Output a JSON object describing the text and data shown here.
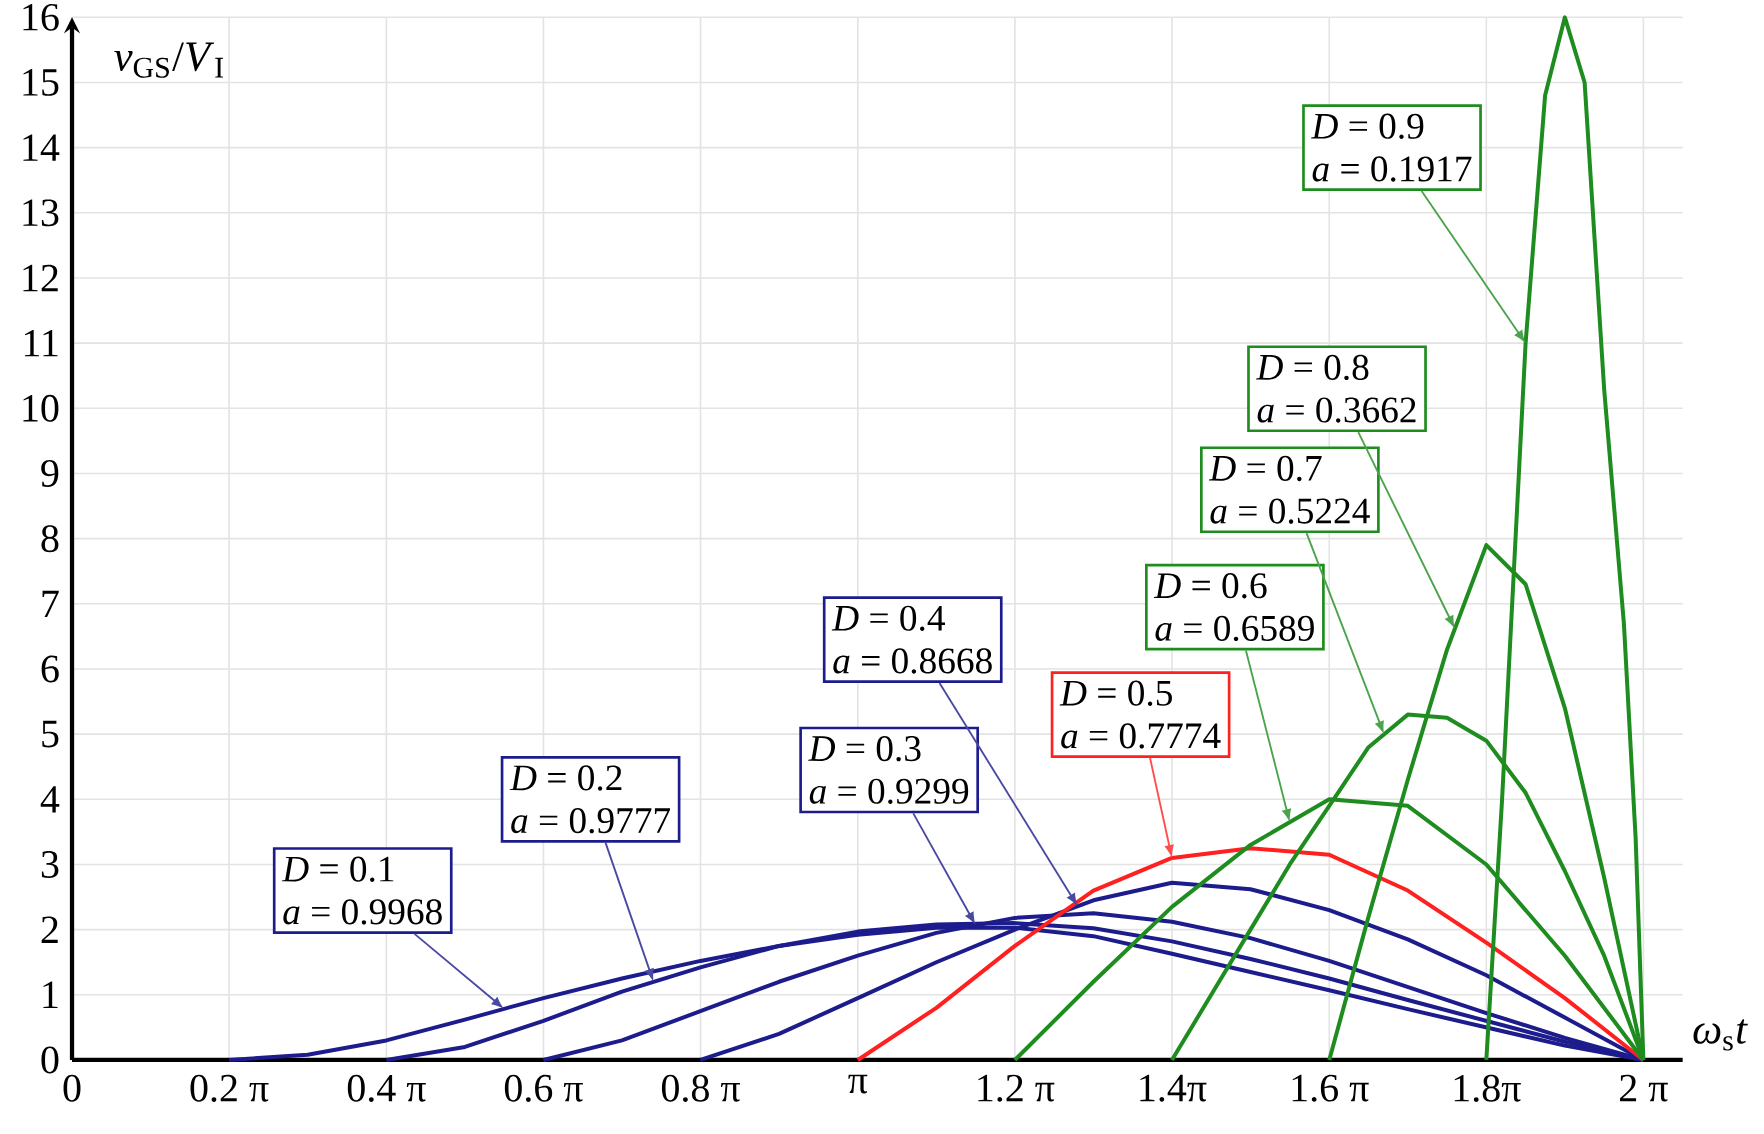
{
  "chart_data": {
    "type": "line",
    "xlabel": "*ω*$_{s}$*t*",
    "ylabel": "*v*$_{GS}$/*V*$_{I}$",
    "xlim": [
      0,
      6.44
    ],
    "ylim": [
      0,
      16
    ],
    "xticks": [
      0,
      {
        "value": 0.628,
        "label": "0.2 π"
      },
      {
        "value": 1.257,
        "label": "0.4 π"
      },
      {
        "value": 1.885,
        "label": "0.6 π"
      },
      {
        "value": 2.513,
        "label": "0.8 π"
      },
      {
        "value": 3.142,
        "label": "π"
      },
      {
        "value": 3.77,
        "label": "1.2 π"
      },
      {
        "value": 4.398,
        "label": "1.4π"
      },
      {
        "value": 5.027,
        "label": "1.6 π"
      },
      {
        "value": 5.655,
        "label": "1.8π"
      },
      {
        "value": 6.283,
        "label": "2 π"
      }
    ],
    "yticks": [
      0,
      1,
      2,
      3,
      4,
      5,
      6,
      7,
      8,
      9,
      10,
      11,
      12,
      13,
      14,
      15,
      16
    ],
    "grid": true,
    "series": [
      {
        "color": "#1c1c8c",
        "x": [
          0.628,
          0.942,
          1.257,
          1.571,
          1.885,
          2.199,
          2.513,
          2.827,
          3.142,
          3.456,
          3.77,
          4.084,
          4.398,
          4.712,
          5.027,
          5.341,
          5.655,
          5.969,
          6.283
        ],
        "values": [
          0,
          0.08,
          0.3,
          0.62,
          0.95,
          1.25,
          1.52,
          1.75,
          1.92,
          2.03,
          2.03,
          1.9,
          1.63,
          1.35,
          1.07,
          0.78,
          0.5,
          0.22,
          0
        ]
      },
      {
        "color": "#1c1c8c",
        "x": [
          1.257,
          1.571,
          1.885,
          2.199,
          2.513,
          2.827,
          3.142,
          3.456,
          3.77,
          4.084,
          4.398,
          4.712,
          5.027,
          5.341,
          5.655,
          5.969,
          6.283
        ],
        "values": [
          0,
          0.2,
          0.6,
          1.05,
          1.42,
          1.75,
          1.97,
          2.08,
          2.1,
          2.02,
          1.82,
          1.55,
          1.25,
          0.92,
          0.6,
          0.28,
          0
        ]
      },
      {
        "color": "#1c1c8c",
        "x": [
          1.885,
          2.199,
          2.513,
          2.827,
          3.142,
          3.456,
          3.77,
          4.084,
          4.398,
          4.712,
          5.027,
          5.341,
          5.655,
          5.969,
          6.283
        ],
        "values": [
          0,
          0.3,
          0.75,
          1.2,
          1.6,
          1.95,
          2.18,
          2.25,
          2.12,
          1.87,
          1.52,
          1.12,
          0.72,
          0.34,
          0
        ]
      },
      {
        "color": "#1c1c8c",
        "x": [
          2.513,
          2.827,
          3.142,
          3.456,
          3.77,
          4.084,
          4.398,
          4.712,
          5.027,
          5.341,
          5.655,
          5.969,
          6.283
        ],
        "values": [
          0,
          0.4,
          0.95,
          1.5,
          2.0,
          2.45,
          2.72,
          2.62,
          2.3,
          1.85,
          1.3,
          0.65,
          0
        ]
      },
      {
        "color": "#ff2020",
        "x": [
          3.142,
          3.456,
          3.77,
          4.084,
          4.398,
          4.712,
          5.027,
          5.341,
          5.655,
          5.969,
          6.283
        ],
        "values": [
          0,
          0.8,
          1.75,
          2.6,
          3.1,
          3.25,
          3.15,
          2.6,
          1.8,
          0.95,
          0
        ]
      },
      {
        "color": "#1e8c1e",
        "x": [
          3.77,
          4.084,
          4.398,
          4.712,
          5.027,
          5.341,
          5.655,
          5.969,
          6.283
        ],
        "values": [
          0,
          1.2,
          2.35,
          3.3,
          4.0,
          3.9,
          3.0,
          1.6,
          0
        ]
      },
      {
        "color": "#1e8c1e",
        "x": [
          4.398,
          4.555,
          4.712,
          4.869,
          5.027,
          5.184,
          5.341,
          5.498,
          5.655,
          5.812,
          5.969,
          6.126,
          6.283
        ],
        "values": [
          0,
          1.0,
          2.0,
          3.0,
          3.9,
          4.8,
          5.3,
          5.25,
          4.9,
          4.1,
          2.9,
          1.6,
          0
        ]
      },
      {
        "color": "#1e8c1e",
        "x": [
          5.027,
          5.184,
          5.341,
          5.498,
          5.655,
          5.812,
          5.969,
          6.126,
          6.283
        ],
        "values": [
          0,
          2.2,
          4.3,
          6.3,
          7.9,
          7.3,
          5.4,
          2.8,
          0
        ]
      },
      {
        "color": "#1e8c1e",
        "x": [
          5.655,
          5.718,
          5.812,
          5.89,
          5.969,
          6.048,
          6.126,
          6.205,
          6.252,
          6.283
        ],
        "values": [
          0,
          4,
          11,
          14.8,
          16,
          15,
          10.3,
          6.7,
          3.4,
          0
        ]
      }
    ],
    "annotations": [
      "*D* = 0.1",
      {
        "text": "*a* = 0.9968",
        "x": 1.728,
        "y": 0.785
      },
      "*D* = 0.2",
      {
        "text": "*a* = 0.9777",
        "x": 2.325,
        "y": 1.2
      },
      "*D* = 0.3",
      {
        "text": "*a* = 0.9299",
        "x": 3.613,
        "y": 2.07
      },
      "*D* = 0.4",
      {
        "text": "*a* = 0.8668",
        "x": 4.021,
        "y": 2.36
      },
      "*D* = 0.5",
      {
        "text": "*a* = 0.7774",
        "x": 4.398,
        "y": 3.1
      },
      "*D* = 0.6",
      {
        "text": "*a* = 0.6589",
        "x": 4.869,
        "y": 3.65
      },
      "*D* = 0.7",
      {
        "text": "*a* = 0.5224",
        "x": 5.246,
        "y": 5.0
      },
      "*D* = 0.8",
      {
        "text": "*a* = 0.3662",
        "x": 5.529,
        "y": 6.62
      },
      "*D* = 0.9",
      {
        "text": "*a* = 0.1917",
        "x": 5.812,
        "y": 11
      }
    ]
  }
}
